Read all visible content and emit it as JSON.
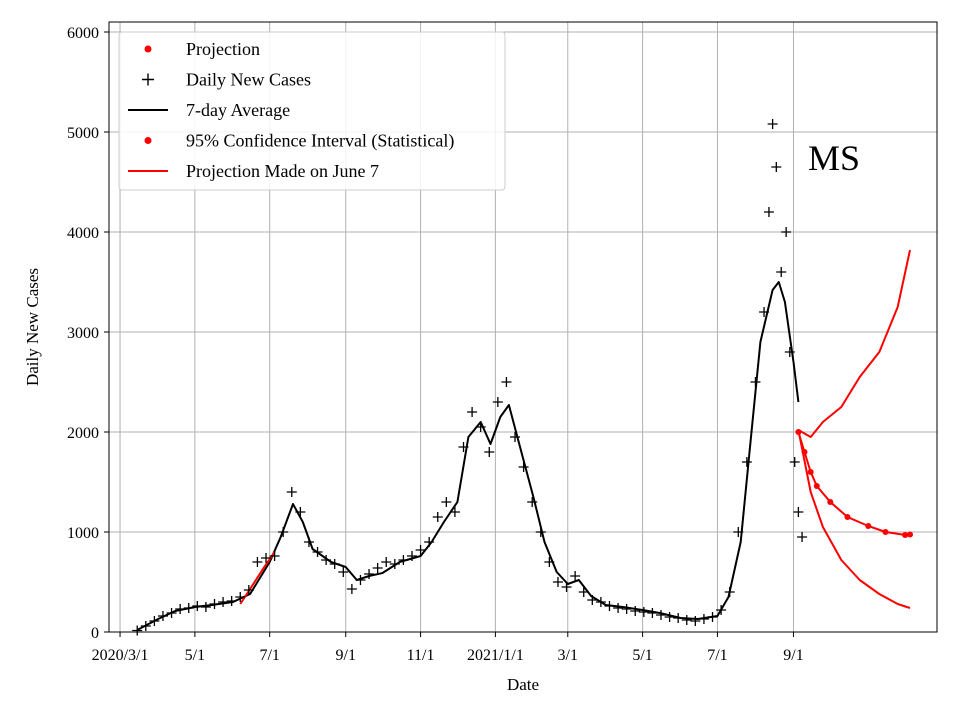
{
  "chart_data": {
    "type": "line",
    "annotation": "MS",
    "xlabel": "Date",
    "ylabel": "Daily New Cases",
    "xlim": [
      "2020-02-21",
      "2021-12-27"
    ],
    "ylim": [
      0,
      6100
    ],
    "x_ticks": [
      {
        "date": "2020-03-01",
        "label": "2020/3/1"
      },
      {
        "date": "2020-05-01",
        "label": "5/1"
      },
      {
        "date": "2020-07-01",
        "label": "7/1"
      },
      {
        "date": "2020-09-01",
        "label": "9/1"
      },
      {
        "date": "2020-11-01",
        "label": "11/1"
      },
      {
        "date": "2021-01-01",
        "label": "2021/1/1"
      },
      {
        "date": "2021-03-01",
        "label": "3/1"
      },
      {
        "date": "2021-05-01",
        "label": "5/1"
      },
      {
        "date": "2021-07-01",
        "label": "7/1"
      },
      {
        "date": "2021-09-01",
        "label": "9/1"
      }
    ],
    "y_ticks": [
      0,
      1000,
      2000,
      3000,
      4000,
      5000,
      6000
    ],
    "y_tick_labels": [
      "0",
      "1000",
      "2000",
      "3000",
      "4000",
      "5000",
      "6000"
    ],
    "grid": true,
    "legend_position": "top-left",
    "legend": [
      {
        "label": "Projection",
        "marker": "dot",
        "color": "#ff0000"
      },
      {
        "label": "Daily New Cases",
        "marker": "plus",
        "color": "#000000"
      },
      {
        "label": "7-day Average",
        "marker": "line",
        "color": "#000000"
      },
      {
        "label": "95% Confidence Interval (Statistical)",
        "marker": "dot",
        "color": "#ff0000"
      },
      {
        "label": "Projection Made on June 7",
        "marker": "line",
        "color": "#ff0000"
      }
    ],
    "series": [
      {
        "name": "7-day Average",
        "color": "#000000",
        "points": [
          [
            "2020-03-15",
            20
          ],
          [
            "2020-04-01",
            130
          ],
          [
            "2020-04-15",
            210
          ],
          [
            "2020-05-01",
            250
          ],
          [
            "2020-05-15",
            270
          ],
          [
            "2020-06-01",
            300
          ],
          [
            "2020-06-15",
            380
          ],
          [
            "2020-07-01",
            700
          ],
          [
            "2020-07-10",
            950
          ],
          [
            "2020-07-20",
            1280
          ],
          [
            "2020-07-28",
            1100
          ],
          [
            "2020-08-05",
            830
          ],
          [
            "2020-08-20",
            700
          ],
          [
            "2020-09-01",
            650
          ],
          [
            "2020-09-10",
            520
          ],
          [
            "2020-09-20",
            560
          ],
          [
            "2020-10-01",
            590
          ],
          [
            "2020-10-15",
            700
          ],
          [
            "2020-11-01",
            760
          ],
          [
            "2020-11-10",
            900
          ],
          [
            "2020-11-20",
            1100
          ],
          [
            "2020-12-01",
            1300
          ],
          [
            "2020-12-10",
            1950
          ],
          [
            "2020-12-20",
            2100
          ],
          [
            "2020-12-28",
            1880
          ],
          [
            "2021-01-05",
            2150
          ],
          [
            "2021-01-12",
            2270
          ],
          [
            "2021-01-20",
            1900
          ],
          [
            "2021-02-01",
            1350
          ],
          [
            "2021-02-10",
            900
          ],
          [
            "2021-02-20",
            600
          ],
          [
            "2021-03-01",
            480
          ],
          [
            "2021-03-10",
            520
          ],
          [
            "2021-03-20",
            360
          ],
          [
            "2021-04-01",
            270
          ],
          [
            "2021-04-15",
            250
          ],
          [
            "2021-05-01",
            220
          ],
          [
            "2021-05-15",
            190
          ],
          [
            "2021-06-01",
            140
          ],
          [
            "2021-06-15",
            130
          ],
          [
            "2021-07-01",
            160
          ],
          [
            "2021-07-10",
            350
          ],
          [
            "2021-07-20",
            900
          ],
          [
            "2021-07-28",
            1900
          ],
          [
            "2021-08-05",
            2900
          ],
          [
            "2021-08-15",
            3420
          ],
          [
            "2021-08-20",
            3500
          ],
          [
            "2021-08-25",
            3300
          ],
          [
            "2021-09-01",
            2700
          ],
          [
            "2021-09-05",
            2300
          ]
        ]
      },
      {
        "name": "Projection Made on June 7",
        "color": "#ff0000",
        "points": [
          [
            "2020-06-07",
            280
          ],
          [
            "2020-06-15",
            430
          ],
          [
            "2020-06-25",
            620
          ],
          [
            "2020-07-05",
            800
          ]
        ]
      },
      {
        "name": "Projection",
        "color": "#ff0000",
        "points": [
          [
            "2021-09-05",
            2000
          ],
          [
            "2021-09-10",
            1800
          ],
          [
            "2021-09-15",
            1600
          ],
          [
            "2021-09-20",
            1460
          ],
          [
            "2021-10-01",
            1300
          ],
          [
            "2021-10-15",
            1150
          ],
          [
            "2021-11-01",
            1060
          ],
          [
            "2021-11-15",
            1000
          ],
          [
            "2021-12-01",
            970
          ],
          [
            "2021-12-05",
            975
          ]
        ]
      },
      {
        "name": "95% Confidence Interval (Statistical)",
        "color": "#ff0000",
        "points": [
          [
            "2021-09-05",
            2020
          ],
          [
            "2021-09-15",
            1950
          ],
          [
            "2021-09-25",
            2100
          ],
          [
            "2021-10-10",
            2250
          ],
          [
            "2021-10-25",
            2550
          ],
          [
            "2021-11-10",
            2800
          ],
          [
            "2021-11-25",
            3250
          ],
          [
            "2021-12-05",
            3820
          ]
        ]
      },
      {
        "name": "95% Confidence Interval (Statistical)",
        "color": "#ff0000",
        "points": [
          [
            "2021-09-05",
            2020
          ],
          [
            "2021-09-15",
            1400
          ],
          [
            "2021-09-25",
            1050
          ],
          [
            "2021-10-10",
            720
          ],
          [
            "2021-10-25",
            520
          ],
          [
            "2021-11-10",
            380
          ],
          [
            "2021-11-25",
            280
          ],
          [
            "2021-12-05",
            240
          ]
        ]
      },
      {
        "name": "Daily New Cases",
        "color": "#000000",
        "points": [
          [
            "2020-03-15",
            15
          ],
          [
            "2020-03-22",
            60
          ],
          [
            "2020-03-29",
            110
          ],
          [
            "2020-04-05",
            160
          ],
          [
            "2020-04-12",
            190
          ],
          [
            "2020-04-19",
            230
          ],
          [
            "2020-04-26",
            240
          ],
          [
            "2020-05-03",
            260
          ],
          [
            "2020-05-10",
            250
          ],
          [
            "2020-05-17",
            280
          ],
          [
            "2020-05-24",
            300
          ],
          [
            "2020-05-31",
            310
          ],
          [
            "2020-06-07",
            350
          ],
          [
            "2020-06-14",
            420
          ],
          [
            "2020-06-21",
            700
          ],
          [
            "2020-06-28",
            740
          ],
          [
            "2020-07-05",
            760
          ],
          [
            "2020-07-12",
            1000
          ],
          [
            "2020-07-19",
            1400
          ],
          [
            "2020-07-26",
            1200
          ],
          [
            "2020-08-02",
            900
          ],
          [
            "2020-08-09",
            800
          ],
          [
            "2020-08-16",
            720
          ],
          [
            "2020-08-23",
            680
          ],
          [
            "2020-08-30",
            600
          ],
          [
            "2020-09-06",
            430
          ],
          [
            "2020-09-13",
            520
          ],
          [
            "2020-09-20",
            580
          ],
          [
            "2020-09-27",
            640
          ],
          [
            "2020-10-04",
            700
          ],
          [
            "2020-10-11",
            680
          ],
          [
            "2020-10-18",
            720
          ],
          [
            "2020-10-25",
            760
          ],
          [
            "2020-11-01",
            820
          ],
          [
            "2020-11-08",
            900
          ],
          [
            "2020-11-15",
            1150
          ],
          [
            "2020-11-22",
            1300
          ],
          [
            "2020-11-29",
            1200
          ],
          [
            "2020-12-06",
            1850
          ],
          [
            "2020-12-13",
            2200
          ],
          [
            "2020-12-20",
            2050
          ],
          [
            "2020-12-27",
            1800
          ],
          [
            "2021-01-03",
            2300
          ],
          [
            "2021-01-10",
            2500
          ],
          [
            "2021-01-17",
            1950
          ],
          [
            "2021-01-24",
            1650
          ],
          [
            "2021-01-31",
            1300
          ],
          [
            "2021-02-07",
            1000
          ],
          [
            "2021-02-14",
            700
          ],
          [
            "2021-02-21",
            500
          ],
          [
            "2021-02-28",
            450
          ],
          [
            "2021-03-07",
            560
          ],
          [
            "2021-03-14",
            400
          ],
          [
            "2021-03-21",
            320
          ],
          [
            "2021-03-28",
            300
          ],
          [
            "2021-04-04",
            260
          ],
          [
            "2021-04-11",
            240
          ],
          [
            "2021-04-18",
            230
          ],
          [
            "2021-04-25",
            210
          ],
          [
            "2021-05-02",
            200
          ],
          [
            "2021-05-09",
            190
          ],
          [
            "2021-05-16",
            170
          ],
          [
            "2021-05-23",
            150
          ],
          [
            "2021-05-30",
            140
          ],
          [
            "2021-06-06",
            120
          ],
          [
            "2021-06-13",
            110
          ],
          [
            "2021-06-20",
            130
          ],
          [
            "2021-06-27",
            150
          ],
          [
            "2021-07-04",
            220
          ],
          [
            "2021-07-11",
            400
          ],
          [
            "2021-07-18",
            1000
          ],
          [
            "2021-07-25",
            1700
          ],
          [
            "2021-08-01",
            2500
          ],
          [
            "2021-08-08",
            3200
          ],
          [
            "2021-08-12",
            4200
          ],
          [
            "2021-08-15",
            5080
          ],
          [
            "2021-08-18",
            4650
          ],
          [
            "2021-08-22",
            3600
          ],
          [
            "2021-08-26",
            4000
          ],
          [
            "2021-08-29",
            2800
          ],
          [
            "2021-09-02",
            1700
          ],
          [
            "2021-09-05",
            1200
          ],
          [
            "2021-09-08",
            950
          ]
        ]
      }
    ]
  }
}
